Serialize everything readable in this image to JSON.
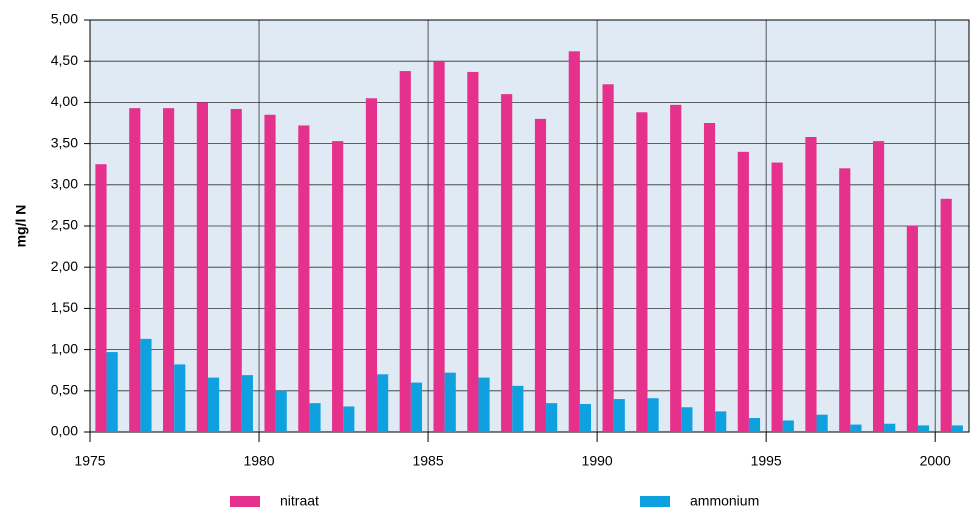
{
  "chart_data": {
    "type": "bar",
    "ylabel": "mg/l N",
    "x": [
      1975,
      1976,
      1977,
      1978,
      1979,
      1980,
      1981,
      1982,
      1983,
      1984,
      1985,
      1986,
      1987,
      1988,
      1989,
      1990,
      1991,
      1992,
      1993,
      1994,
      1995,
      1996,
      1997,
      1998,
      1999,
      2000
    ],
    "series": [
      {
        "name": "nitraat",
        "color": "#e5308c",
        "values": [
          3.25,
          3.93,
          3.93,
          4.0,
          3.92,
          3.85,
          3.72,
          3.53,
          4.05,
          4.38,
          4.5,
          4.37,
          4.1,
          3.8,
          4.62,
          4.22,
          3.88,
          3.97,
          3.75,
          3.4,
          3.27,
          3.58,
          3.2,
          3.53,
          2.5,
          2.83
        ]
      },
      {
        "name": "ammonium",
        "color": "#0fa0e0",
        "values": [
          0.97,
          1.13,
          0.82,
          0.66,
          0.69,
          0.5,
          0.35,
          0.31,
          0.7,
          0.6,
          0.72,
          0.66,
          0.56,
          0.35,
          0.34,
          0.4,
          0.41,
          0.3,
          0.25,
          0.17,
          0.14,
          0.21,
          0.09,
          0.1,
          0.08,
          0.08
        ]
      }
    ],
    "xlim": [
      1975,
      2001
    ],
    "xticks": [
      1975,
      1980,
      1985,
      1990,
      1995,
      2000
    ],
    "ylim": [
      0,
      5
    ],
    "yticks": [
      {
        "value": 0,
        "label": "0,00"
      },
      {
        "value": 0.5,
        "label": "0,50"
      },
      {
        "value": 1,
        "label": "1,00"
      },
      {
        "value": 1.5,
        "label": "1,50"
      },
      {
        "value": 2,
        "label": "2,00"
      },
      {
        "value": 2.5,
        "label": "2,50"
      },
      {
        "value": 3,
        "label": "3,00"
      },
      {
        "value": 3.5,
        "label": "3,50"
      },
      {
        "value": 4,
        "label": "4,00"
      },
      {
        "value": 4.5,
        "label": "4,50"
      },
      {
        "value": 5,
        "label": "5,00"
      }
    ],
    "grid": true,
    "legend": "bottom"
  }
}
